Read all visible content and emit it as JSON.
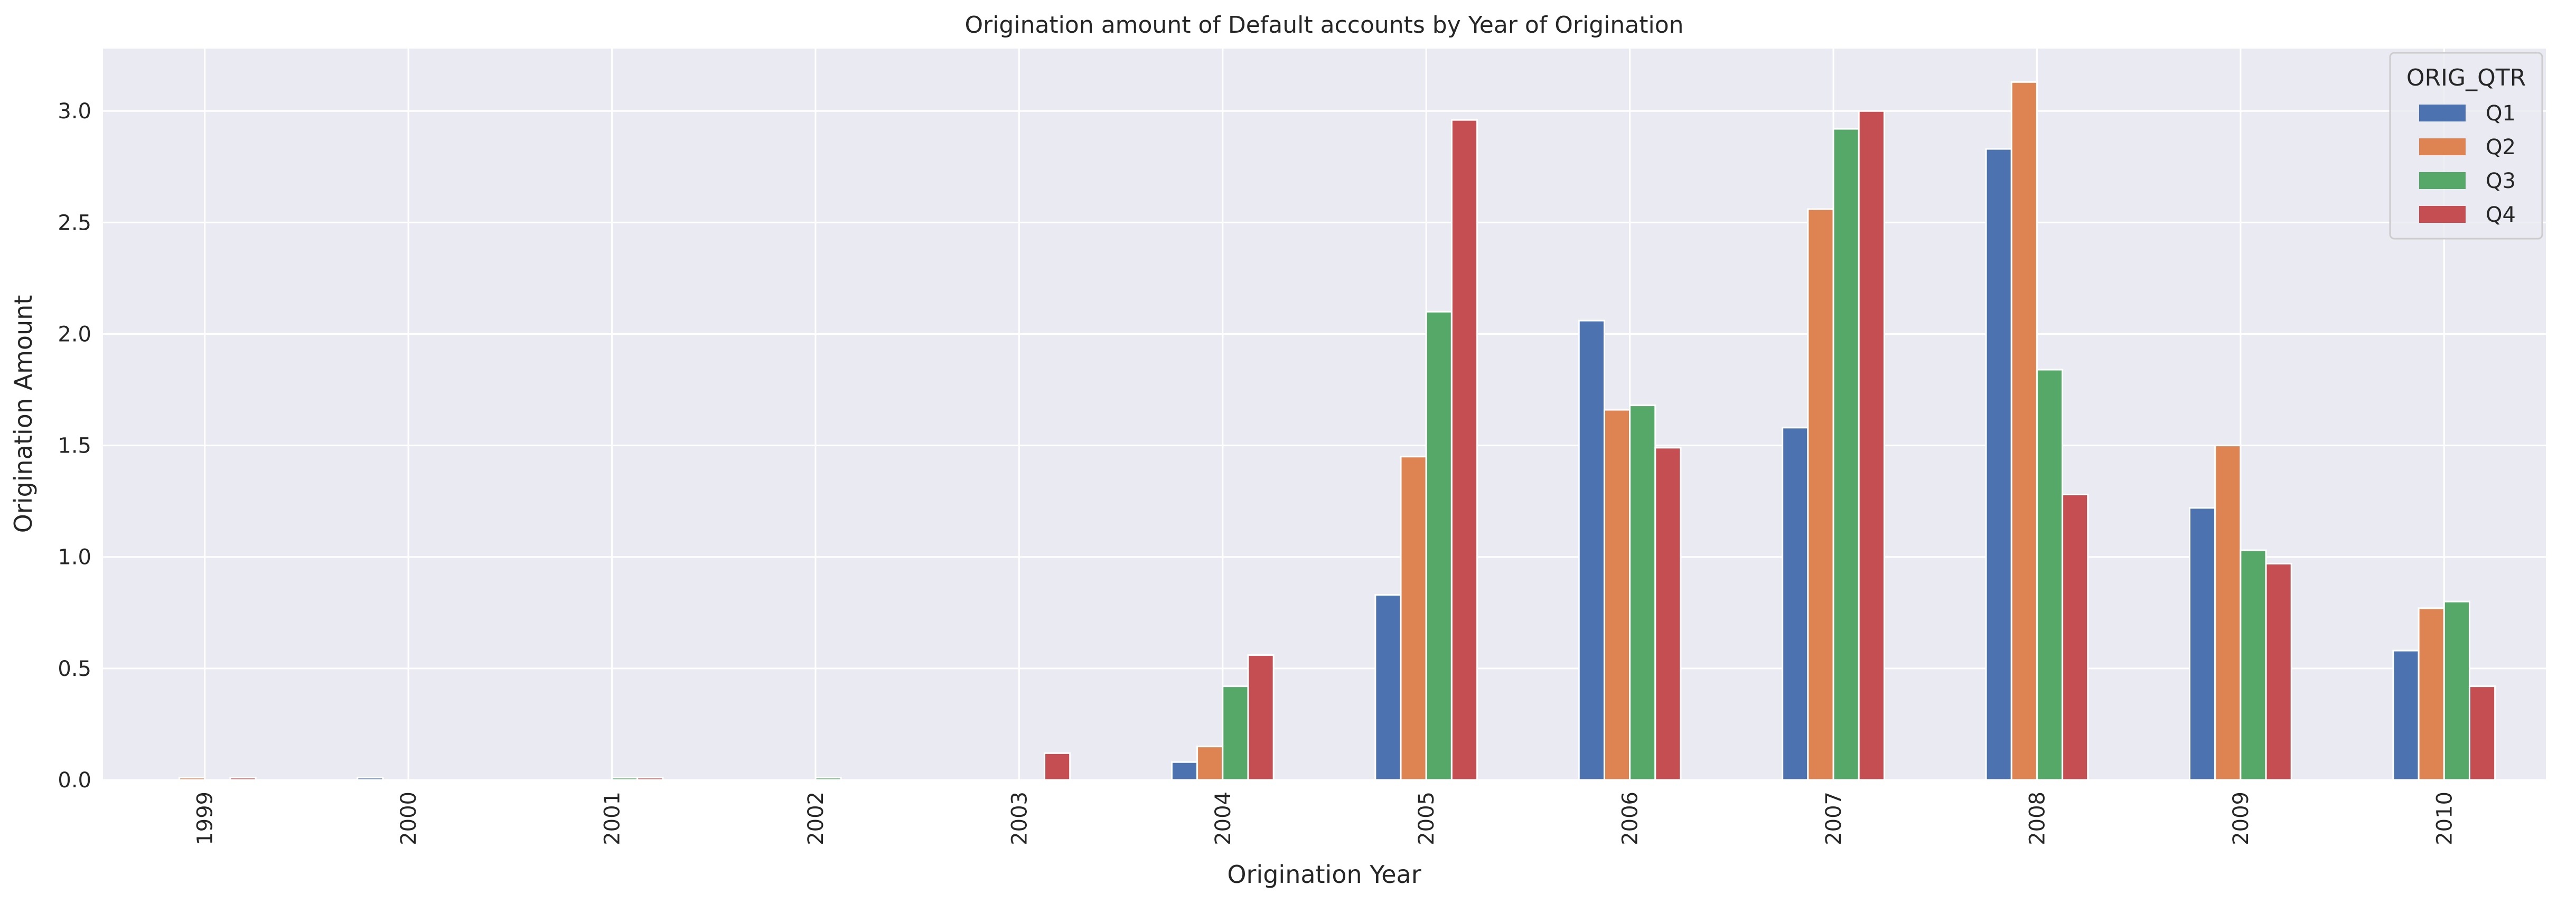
{
  "chart_data": {
    "type": "bar",
    "title": "Origination amount of Default accounts by Year of Origination",
    "xlabel": "Origination Year",
    "ylabel": "Origination Amount",
    "categories": [
      "1999",
      "2000",
      "2001",
      "2002",
      "2003",
      "2004",
      "2005",
      "2006",
      "2007",
      "2008",
      "2009",
      "2010"
    ],
    "ylim": [
      0,
      3.28
    ],
    "yticks": [
      "0.0",
      "0.5",
      "1.0",
      "1.5",
      "2.0",
      "2.5",
      "3.0"
    ],
    "grid": true,
    "legend": {
      "title": "ORIG_QTR",
      "placement": "top-right"
    },
    "series": [
      {
        "name": "Q1",
        "color": "#4c72b0",
        "values": [
          0.0,
          0.01,
          0.0,
          0.0,
          0.0,
          0.08,
          0.83,
          2.06,
          1.58,
          2.83,
          1.22,
          0.58
        ]
      },
      {
        "name": "Q2",
        "color": "#dd8452",
        "values": [
          0.01,
          0.0,
          0.0,
          0.0,
          0.0,
          0.15,
          1.45,
          1.66,
          2.56,
          3.13,
          1.5,
          0.77
        ]
      },
      {
        "name": "Q3",
        "color": "#55a868",
        "values": [
          0.0,
          0.0,
          0.01,
          0.01,
          0.0,
          0.42,
          2.1,
          1.68,
          2.92,
          1.84,
          1.03,
          0.8
        ]
      },
      {
        "name": "Q4",
        "color": "#c44e52",
        "values": [
          0.01,
          0.0,
          0.01,
          0.0,
          0.12,
          0.56,
          2.96,
          1.49,
          3.0,
          1.28,
          0.97,
          0.42
        ]
      }
    ]
  }
}
